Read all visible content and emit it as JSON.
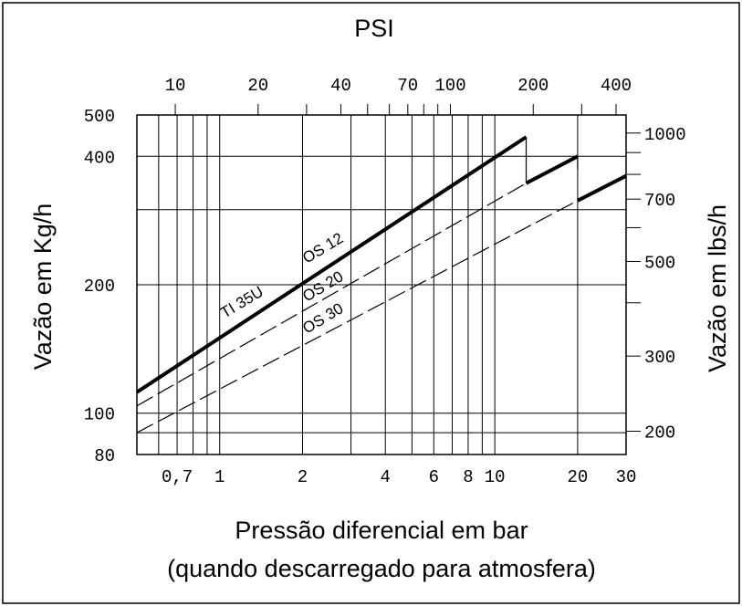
{
  "chart_data": {
    "type": "line",
    "title": "",
    "top_axis_label": "PSI",
    "xlabel": "Pressão diferencial em bar",
    "xlabel_line2": "(quando descarregado para atmosfera)",
    "ylabel": "Vazão em Kg/h",
    "ylabel_right": "Vazão em lbs/h",
    "x_scale": "log",
    "y_scale": "log",
    "xlim": [
      0.5,
      30
    ],
    "ylim": [
      80,
      500
    ],
    "x_ticks": [
      {
        "value": 0.7,
        "label": "0,7"
      },
      {
        "value": 1,
        "label": "1"
      },
      {
        "value": 2,
        "label": "2"
      },
      {
        "value": 4,
        "label": "4"
      },
      {
        "value": 6,
        "label": "6"
      },
      {
        "value": 8,
        "label": "8"
      },
      {
        "value": 10,
        "label": "10"
      },
      {
        "value": 20,
        "label": "20"
      },
      {
        "value": 30,
        "label": "30"
      }
    ],
    "y_ticks": [
      {
        "value": 80,
        "label": "80"
      },
      {
        "value": 100,
        "label": "100"
      },
      {
        "value": 200,
        "label": "200"
      },
      {
        "value": 400,
        "label": "400"
      },
      {
        "value": 500,
        "label": "500"
      }
    ],
    "top_ticks": [
      {
        "value": 10,
        "label": "10"
      },
      {
        "value": 20,
        "label": "20"
      },
      {
        "value": 40,
        "label": "40"
      },
      {
        "value": 70,
        "label": "70"
      },
      {
        "value": 100,
        "label": "100"
      },
      {
        "value": 200,
        "label": "200"
      },
      {
        "value": 400,
        "label": "400"
      }
    ],
    "right_ticks": [
      {
        "value": 200,
        "label": "200"
      },
      {
        "value": 300,
        "label": "300"
      },
      {
        "value": 500,
        "label": "500"
      },
      {
        "value": 700,
        "label": "700"
      },
      {
        "value": 1000,
        "label": "1000"
      }
    ],
    "series": [
      {
        "name": "TI 35U",
        "style": "solid-thick",
        "segments": [
          [
            [
              0.5,
              112
            ],
            [
              13,
              444
            ]
          ]
        ]
      },
      {
        "name": "OS 12",
        "style": "dashed",
        "segments": [
          [
            [
              0.5,
              104
            ],
            [
              13,
              346
            ]
          ],
          [
            [
              13,
              346
            ],
            [
              20,
              400
            ]
          ]
        ]
      },
      {
        "name": "OS 20",
        "style": "dashed",
        "segments": [
          [
            [
              0.5,
              90
            ],
            [
              20,
              315
            ]
          ],
          [
            [
              20,
              315
            ],
            [
              30,
              360
            ]
          ]
        ]
      },
      {
        "name": "OS 30",
        "style": "dashed",
        "segments": []
      }
    ]
  }
}
